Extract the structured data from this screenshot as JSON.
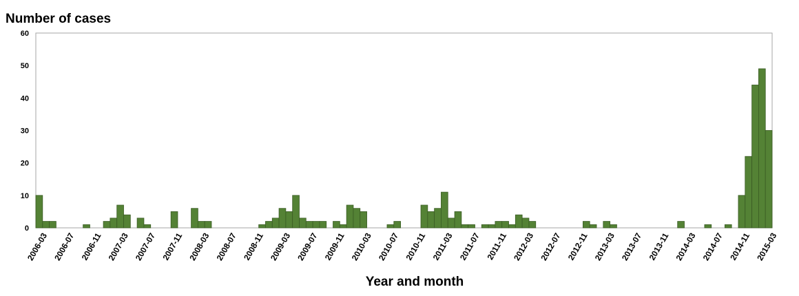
{
  "chart_data": {
    "type": "bar",
    "ylabel": "Number of cases",
    "xlabel": "Year and month",
    "ylim": [
      0,
      60
    ],
    "yticks": [
      0,
      10,
      20,
      30,
      40,
      50,
      60
    ],
    "grid": false,
    "bar_color": "#548235",
    "bar_edge_color": "#3a5c24",
    "x_tick_labels": [
      "2006-03",
      "2006-07",
      "2006-11",
      "2007-03",
      "2007-07",
      "2007-11",
      "2008-03",
      "2008-07",
      "2008-11",
      "2009-03",
      "2009-07",
      "2009-11",
      "2010-03",
      "2010-07",
      "2010-11",
      "2011-03",
      "2011-07",
      "2011-11",
      "2012-03",
      "2012-07",
      "2012-11",
      "2013-03",
      "2013-07",
      "2013-11",
      "2014-03",
      "2014-07",
      "2014-11",
      "2015-03"
    ],
    "categories": [
      "2006-03",
      "2006-04",
      "2006-05",
      "2006-06",
      "2006-07",
      "2006-08",
      "2006-09",
      "2006-10",
      "2006-11",
      "2006-12",
      "2007-01",
      "2007-02",
      "2007-03",
      "2007-04",
      "2007-05",
      "2007-06",
      "2007-07",
      "2007-08",
      "2007-09",
      "2007-10",
      "2007-11",
      "2007-12",
      "2008-01",
      "2008-02",
      "2008-03",
      "2008-04",
      "2008-05",
      "2008-06",
      "2008-07",
      "2008-08",
      "2008-09",
      "2008-10",
      "2008-11",
      "2008-12",
      "2009-01",
      "2009-02",
      "2009-03",
      "2009-04",
      "2009-05",
      "2009-06",
      "2009-07",
      "2009-08",
      "2009-09",
      "2009-10",
      "2009-11",
      "2009-12",
      "2010-01",
      "2010-02",
      "2010-03",
      "2010-04",
      "2010-05",
      "2010-06",
      "2010-07",
      "2010-08",
      "2010-09",
      "2010-10",
      "2010-11",
      "2010-12",
      "2011-01",
      "2011-02",
      "2011-03",
      "2011-04",
      "2011-05",
      "2011-06",
      "2011-07",
      "2011-08",
      "2011-09",
      "2011-10",
      "2011-11",
      "2011-12",
      "2012-01",
      "2012-02",
      "2012-03",
      "2012-04",
      "2012-05",
      "2012-06",
      "2012-07",
      "2012-08",
      "2012-09",
      "2012-10",
      "2012-11",
      "2012-12",
      "2013-01",
      "2013-02",
      "2013-03",
      "2013-04",
      "2013-05",
      "2013-06",
      "2013-07",
      "2013-08",
      "2013-09",
      "2013-10",
      "2013-11",
      "2013-12",
      "2014-01",
      "2014-02",
      "2014-03",
      "2014-04",
      "2014-05",
      "2014-06",
      "2014-07",
      "2014-08",
      "2014-09",
      "2014-10",
      "2014-11",
      "2014-12",
      "2015-01",
      "2015-02",
      "2015-03"
    ],
    "values": [
      10,
      2,
      2,
      0,
      0,
      0,
      0,
      1,
      0,
      0,
      2,
      3,
      7,
      4,
      0,
      3,
      1,
      0,
      0,
      0,
      5,
      0,
      0,
      6,
      2,
      2,
      0,
      0,
      0,
      0,
      0,
      0,
      0,
      1,
      2,
      3,
      6,
      5,
      10,
      3,
      2,
      2,
      2,
      0,
      2,
      1,
      7,
      6,
      5,
      0,
      0,
      0,
      1,
      2,
      0,
      0,
      0,
      7,
      5,
      6,
      11,
      3,
      5,
      1,
      1,
      0,
      1,
      1,
      2,
      2,
      1,
      4,
      3,
      2,
      0,
      0,
      0,
      0,
      0,
      0,
      0,
      2,
      1,
      0,
      2,
      1,
      0,
      0,
      0,
      0,
      0,
      0,
      0,
      0,
      0,
      2,
      0,
      0,
      0,
      1,
      0,
      0,
      1,
      0,
      10,
      22,
      44,
      49,
      30
    ]
  }
}
